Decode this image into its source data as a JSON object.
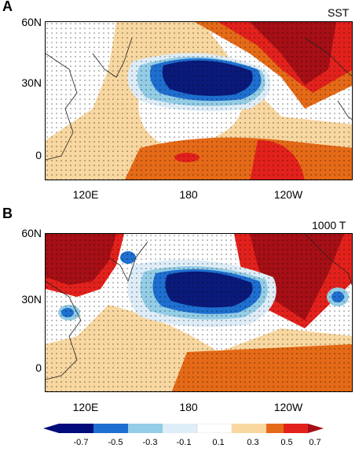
{
  "panels": [
    {
      "letter": "A",
      "tag": "SST",
      "lat_labels": [
        "60N",
        "30N",
        "0"
      ],
      "lon_labels": [
        "120E",
        "180",
        "120W"
      ]
    },
    {
      "letter": "B",
      "tag": "1000 T",
      "lat_labels": [
        "60N",
        "30N",
        "0"
      ],
      "lon_labels": [
        "120E",
        "180",
        "120W"
      ]
    }
  ],
  "colorbar": {
    "labels": [
      "-0.7",
      "-0.5",
      "-0.3",
      "-0.1",
      "0.1",
      "0.3",
      "0.5",
      "0.7"
    ],
    "colors": [
      "#000c7a",
      "#1e6fd0",
      "#93cde6",
      "#deedf7",
      "#ffffff",
      "#f8d7a0",
      "#e56a17",
      "#e3211c",
      "#a50f15"
    ]
  },
  "palette": {
    "dark_blue": "#0a1a7a",
    "blue": "#1e6fd0",
    "light_blue": "#93cde6",
    "pale_blue": "#deedf7",
    "tan": "#f8d7a0",
    "orange": "#e56a17",
    "red": "#e3211c",
    "dark_red": "#a50f15"
  }
}
